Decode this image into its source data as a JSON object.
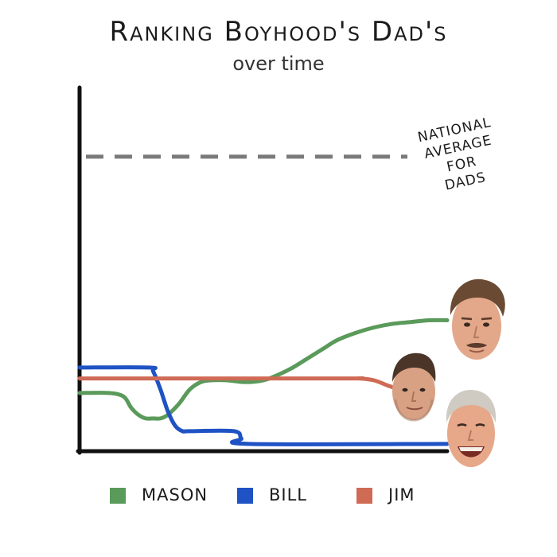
{
  "colors": {
    "mason": "#5a9a5a",
    "bill": "#1f52c4",
    "jim": "#cf6a55",
    "average": "#7a7a7a",
    "axis": "#111111"
  },
  "chart_data": {
    "type": "line",
    "title": "Ranking Boyhood's Dad's",
    "subtitle": "over time",
    "xlabel": "",
    "ylabel": "",
    "xlim": [
      0,
      100
    ],
    "ylim": [
      0,
      100
    ],
    "grid": false,
    "legend_position": "bottom",
    "reference_line": {
      "value": 81,
      "style": "dashed",
      "label": [
        "National",
        "Average",
        "For",
        "Dads"
      ]
    },
    "series": [
      {
        "name": "Mason",
        "color_key": "mason",
        "x": [
          0,
          8,
          12,
          14,
          16,
          18,
          20,
          22,
          24,
          27,
          30,
          33,
          36,
          40,
          45,
          50,
          54,
          58,
          62,
          66,
          70,
          75,
          80,
          85,
          90,
          95,
          100
        ],
        "y": [
          16,
          16,
          15,
          12,
          10,
          9,
          9,
          9,
          10,
          13,
          17,
          19,
          19.5,
          19.5,
          19,
          19.5,
          21,
          23,
          25.5,
          28,
          30.5,
          32.5,
          34,
          35,
          35.5,
          36,
          36
        ]
      },
      {
        "name": "Bill",
        "color_key": "bill",
        "x": [
          0,
          19,
          20,
          22,
          24,
          26,
          28,
          30,
          42,
          44,
          46,
          100
        ],
        "y": [
          23,
          23,
          22,
          17,
          11,
          7,
          5.5,
          5.5,
          5.5,
          3.5,
          2,
          2
        ]
      },
      {
        "name": "Jim",
        "color_key": "jim",
        "x": [
          0,
          70,
          76,
          80,
          84,
          87,
          91
        ],
        "y": [
          20,
          20,
          20,
          19.5,
          18,
          17,
          16
        ]
      }
    ]
  },
  "faces": [
    {
      "name": "mason-face",
      "series": "Mason"
    },
    {
      "name": "jim-face",
      "series": "Jim"
    },
    {
      "name": "bill-face",
      "series": "Bill"
    }
  ]
}
